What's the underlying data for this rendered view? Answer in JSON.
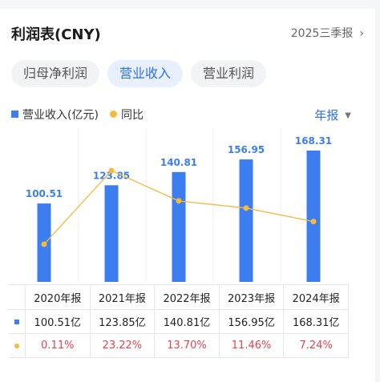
{
  "header": {
    "title": "利润表(CNY)",
    "period": "2025三季报",
    "chevron_icon": "chevron-right-icon"
  },
  "tabs": [
    {
      "label": "归母净利润",
      "active": false
    },
    {
      "label": "营业收入",
      "active": true
    },
    {
      "label": "营业利润",
      "active": false
    }
  ],
  "legend": {
    "revenue": "营业收入(亿元)",
    "yoy": "同比"
  },
  "frequency": {
    "label": "年报",
    "caret_icon": "caret-down-icon"
  },
  "colors": {
    "bar": "#3c7ef0",
    "line": "#f5b93e",
    "accent": "#2f6fe8",
    "negative": "#e5414e"
  },
  "chart_data": {
    "type": "bar",
    "categories": [
      "2020年报",
      "2021年报",
      "2022年报",
      "2023年报",
      "2024年报"
    ],
    "series": [
      {
        "name": "营业收入(亿元)",
        "type": "bar",
        "values": [
          100.51,
          123.85,
          140.81,
          156.95,
          168.31
        ],
        "labels": [
          "100.51",
          "123.85",
          "140.81",
          "156.95",
          "168.31"
        ]
      },
      {
        "name": "同比",
        "type": "line",
        "values": [
          0.11,
          23.22,
          13.7,
          11.46,
          7.24
        ]
      }
    ],
    "ylim": [
      0,
      175
    ]
  },
  "table": {
    "headers": [
      "2020年报",
      "2021年报",
      "2022年报",
      "2023年报",
      "2024年报"
    ],
    "revenue_row": [
      "100.51亿",
      "123.85亿",
      "140.81亿",
      "156.95亿",
      "168.31亿"
    ],
    "yoy_row": [
      "0.11%",
      "23.22%",
      "13.70%",
      "11.46%",
      "7.24%"
    ]
  }
}
